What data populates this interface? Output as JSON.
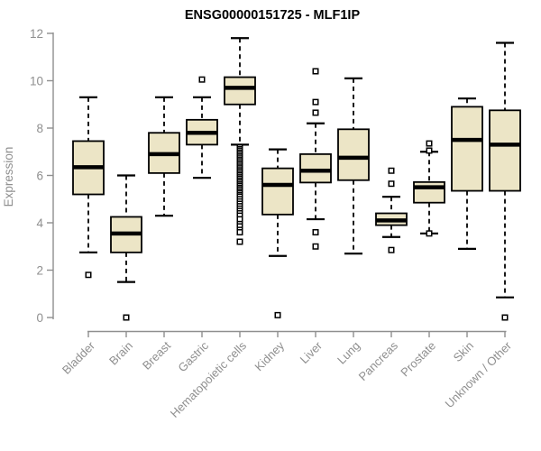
{
  "title": "ENSG00000151725 - MLF1IP",
  "colors": {
    "box_fill": "#ECE5C6",
    "box_stroke": "#000000",
    "median": "#000000",
    "axis": "#8F8F8F",
    "label": "#8F8F8F",
    "title": "#000000",
    "background": "#FFFFFF"
  },
  "chart_data": {
    "type": "boxplot",
    "title": "ENSG00000151725 - MLF1IP",
    "xlabel": "",
    "ylabel": "Expression",
    "ylim": [
      0,
      12
    ],
    "yticks": [
      0,
      2,
      4,
      6,
      8,
      10,
      12
    ],
    "grid": false,
    "legend": false,
    "categories": [
      "Bladder",
      "Brain",
      "Breast",
      "Gastric",
      "Hematopoietic cells",
      "Kidney",
      "Liver",
      "Lung",
      "Pancreas",
      "Prostate",
      "Skin",
      "Unknown / Other"
    ],
    "series": [
      {
        "name": "Bladder",
        "low": 2.75,
        "q1": 5.2,
        "median": 6.35,
        "q3": 7.45,
        "high": 9.3,
        "outliers": [
          1.8
        ]
      },
      {
        "name": "Brain",
        "low": 1.5,
        "q1": 2.75,
        "median": 3.55,
        "q3": 4.25,
        "high": 6.0,
        "outliers": [
          0
        ]
      },
      {
        "name": "Breast",
        "low": 4.3,
        "q1": 6.1,
        "median": 6.9,
        "q3": 7.8,
        "high": 9.3,
        "outliers": []
      },
      {
        "name": "Gastric",
        "low": 5.9,
        "q1": 7.3,
        "median": 7.8,
        "q3": 8.35,
        "high": 9.3,
        "outliers": [
          10.05
        ]
      },
      {
        "name": "Hematopoietic cells",
        "low": 7.3,
        "q1": 9.0,
        "median": 9.7,
        "q3": 10.15,
        "high": 11.8,
        "outliers": [
          7.2,
          7.12,
          7.05,
          6.97,
          6.9,
          6.82,
          6.75,
          6.67,
          6.6,
          6.52,
          6.45,
          6.37,
          6.3,
          6.22,
          6.15,
          6.07,
          6.0,
          5.92,
          5.85,
          5.77,
          5.7,
          5.62,
          5.55,
          5.47,
          5.4,
          5.32,
          5.25,
          5.17,
          5.1,
          5.0,
          4.9,
          4.8,
          4.7,
          4.6,
          4.5,
          4.4,
          4.3,
          4.15,
          3.95,
          3.85,
          3.7,
          3.6,
          3.2
        ]
      },
      {
        "name": "Kidney",
        "low": 2.6,
        "q1": 4.35,
        "median": 5.6,
        "q3": 6.3,
        "high": 7.1,
        "outliers": [
          0.1
        ]
      },
      {
        "name": "Liver",
        "low": 4.15,
        "q1": 5.7,
        "median": 6.2,
        "q3": 6.9,
        "high": 8.2,
        "outliers": [
          10.4,
          9.1,
          8.65,
          3.6,
          3.0
        ]
      },
      {
        "name": "Lung",
        "low": 2.7,
        "q1": 5.8,
        "median": 6.75,
        "q3": 7.95,
        "high": 10.1,
        "outliers": []
      },
      {
        "name": "Pancreas",
        "low": 3.4,
        "q1": 3.9,
        "median": 4.1,
        "q3": 4.4,
        "high": 5.1,
        "outliers": [
          6.2,
          5.65,
          2.85
        ]
      },
      {
        "name": "Prostate",
        "low": 3.55,
        "q1": 4.85,
        "median": 5.5,
        "q3": 5.72,
        "high": 7.0,
        "outliers": [
          7.35,
          7.05,
          3.55
        ]
      },
      {
        "name": "Skin",
        "low": 2.9,
        "q1": 5.35,
        "median": 7.5,
        "q3": 8.9,
        "high": 9.25,
        "outliers": []
      },
      {
        "name": "Unknown / Other",
        "low": 0.85,
        "q1": 5.35,
        "median": 7.3,
        "q3": 8.75,
        "high": 11.6,
        "outliers": [
          0
        ]
      }
    ]
  }
}
